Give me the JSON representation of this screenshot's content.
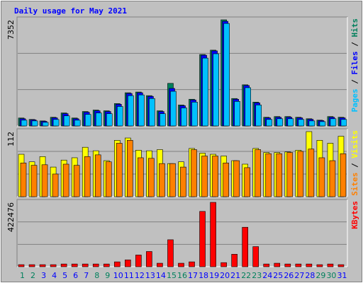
{
  "title": "Daily usage for May 2021",
  "legend_separator": "/",
  "chart_data": [
    {
      "type": "bar",
      "ylim": [
        0,
        7352
      ],
      "yticks": [
        7352
      ],
      "series": [
        {
          "name": "Hits",
          "color": "#00805c",
          "values": [
            550,
            450,
            350,
            600,
            900,
            550,
            1000,
            1100,
            1050,
            1550,
            2300,
            2350,
            2100,
            1050,
            2950,
            1450,
            1850,
            4950,
            5250,
            7352,
            1900,
            2850,
            1650,
            600,
            650,
            650,
            600,
            500,
            400,
            650,
            600
          ]
        },
        {
          "name": "Files",
          "color": "#0000ff",
          "values": [
            500,
            420,
            320,
            560,
            850,
            500,
            950,
            1050,
            1000,
            1500,
            2250,
            2300,
            2050,
            1000,
            2600,
            1400,
            1800,
            4900,
            5200,
            7250,
            1850,
            2800,
            1600,
            560,
            600,
            600,
            560,
            460,
            370,
            600,
            560
          ]
        },
        {
          "name": "Pages",
          "color": "#00c0ff",
          "values": [
            400,
            350,
            250,
            450,
            700,
            400,
            800,
            900,
            850,
            1350,
            2100,
            2150,
            1900,
            850,
            2400,
            1250,
            1650,
            4700,
            5000,
            7100,
            1700,
            2650,
            1450,
            450,
            500,
            500,
            450,
            350,
            300,
            500,
            450
          ]
        }
      ]
    },
    {
      "type": "bar",
      "ylim": [
        0,
        112
      ],
      "yticks": [
        112
      ],
      "series": [
        {
          "name": "Visits",
          "color": "#ffff00",
          "values": [
            73,
            60,
            69,
            51,
            63,
            67,
            85,
            79,
            62,
            97,
            101,
            80,
            79,
            81,
            57,
            60,
            83,
            75,
            73,
            70,
            62,
            56,
            83,
            76,
            76,
            77,
            80,
            112,
            97,
            92,
            104
          ]
        },
        {
          "name": "Sites",
          "color": "#ff8000",
          "values": [
            58,
            54,
            55,
            39,
            56,
            54,
            69,
            72,
            60,
            92,
            97,
            67,
            66,
            57,
            57,
            51,
            81,
            70,
            70,
            58,
            62,
            50,
            81,
            74,
            74,
            76,
            78,
            82,
            67,
            62,
            74
          ]
        }
      ]
    },
    {
      "type": "bar",
      "ylim": [
        0,
        422476
      ],
      "yticks": [
        422476
      ],
      "categories": [
        "1",
        "2",
        "3",
        "4",
        "5",
        "6",
        "7",
        "8",
        "9",
        "10",
        "11",
        "12",
        "13",
        "14",
        "15",
        "16",
        "17",
        "18",
        "19",
        "20",
        "21",
        "22",
        "23",
        "24",
        "25",
        "26",
        "27",
        "28",
        "29",
        "30",
        "31"
      ],
      "category_colors": [
        "#00805c",
        "#00805c",
        "#0000ff",
        "#0000ff",
        "#0000ff",
        "#0000ff",
        "#0000ff",
        "#00805c",
        "#00805c",
        "#0000ff",
        "#0000ff",
        "#0000ff",
        "#0000ff",
        "#0000ff",
        "#00805c",
        "#00805c",
        "#0000ff",
        "#0000ff",
        "#0000ff",
        "#0000ff",
        "#0000ff",
        "#00805c",
        "#00805c",
        "#0000ff",
        "#0000ff",
        "#0000ff",
        "#0000ff",
        "#0000ff",
        "#00805c",
        "#00805c",
        "#0000ff"
      ],
      "series": [
        {
          "name": "KBytes",
          "color": "#ff0000",
          "values": [
            13600,
            13600,
            13600,
            13600,
            18000,
            18000,
            18000,
            18000,
            18000,
            32000,
            45000,
            77000,
            100000,
            23000,
            177000,
            23000,
            32000,
            363000,
            422476,
            27000,
            82000,
            259000,
            132000,
            18000,
            23000,
            18000,
            18000,
            18000,
            13600,
            18000,
            13600
          ]
        }
      ]
    }
  ]
}
